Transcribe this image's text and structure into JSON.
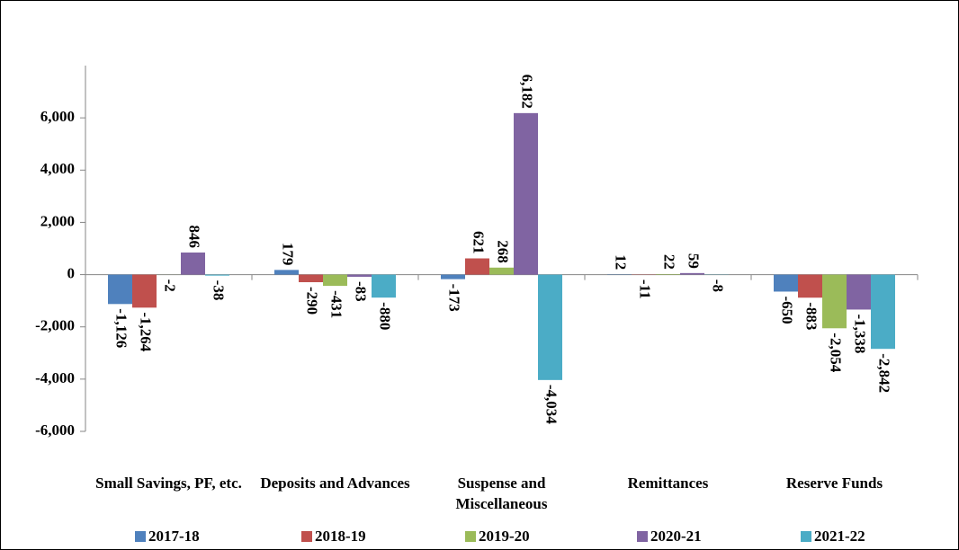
{
  "chart_data": {
    "type": "bar",
    "categories": [
      "Small Savings, PF, etc.",
      "Deposits and Advances",
      "Suspense and Miscellaneous",
      "Remittances",
      "Reserve Funds"
    ],
    "series": [
      {
        "name": "2017-18",
        "color": "#4f81bd",
        "values": [
          -1126,
          179,
          -173,
          12,
          -650
        ],
        "value_labels": [
          "-1,126",
          "179",
          "-173",
          "12",
          "-650"
        ]
      },
      {
        "name": "2018-19",
        "color": "#c0504d",
        "values": [
          -1264,
          -290,
          621,
          -11,
          -883
        ],
        "value_labels": [
          "-1,264",
          "-290",
          "621",
          "-11",
          "-883"
        ]
      },
      {
        "name": "2019-20",
        "color": "#9bbb59",
        "values": [
          -2,
          -431,
          268,
          22,
          -2054
        ],
        "value_labels": [
          "-2",
          "-431",
          "268",
          "22",
          "-2,054"
        ]
      },
      {
        "name": "2020-21",
        "color": "#8064a2",
        "values": [
          846,
          -83,
          6182,
          59,
          -1338
        ],
        "value_labels": [
          "846",
          "-83",
          "6,182",
          "59",
          "-1,338"
        ]
      },
      {
        "name": "2021-22",
        "color": "#4bacc6",
        "values": [
          -38,
          -880,
          -4034,
          -8,
          -2842
        ],
        "value_labels": [
          "-38",
          "-880",
          "-4,034",
          "-8",
          "-2,842"
        ]
      }
    ],
    "ylim": [
      -6000,
      8000
    ],
    "yticks": [
      {
        "value": -6000,
        "label": "-6,000"
      },
      {
        "value": -4000,
        "label": "-4,000"
      },
      {
        "value": -2000,
        "label": "-2,000"
      },
      0,
      {
        "value": 2000,
        "label": "2,000"
      },
      {
        "value": 4000,
        "label": "4,000"
      },
      {
        "value": 6000,
        "label": "6,000"
      }
    ],
    "legend": "bottom"
  }
}
